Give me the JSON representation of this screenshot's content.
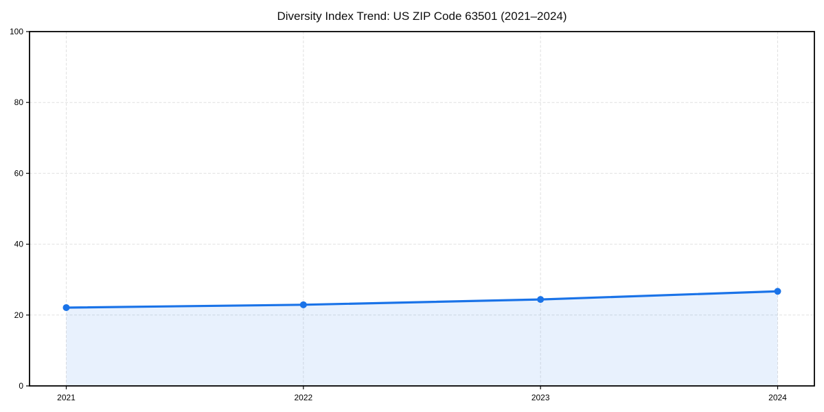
{
  "chart_data": {
    "type": "area",
    "title": "Diversity Index Trend: US ZIP Code 63501 (2021–2024)",
    "categories": [
      "2021",
      "2022",
      "2023",
      "2024"
    ],
    "series": [
      {
        "name": "Diversity Index",
        "values": [
          22.1,
          22.9,
          24.4,
          26.7
        ]
      }
    ],
    "xlabel": "",
    "ylabel": "",
    "ylim": [
      0,
      100
    ],
    "yticks": [
      0,
      20,
      40,
      60,
      80,
      100
    ],
    "grid": "dashed-both-axes",
    "legend": "none",
    "colors": {
      "line": "#1a73e8",
      "marker": "#1a73e8",
      "area_fill": "rgba(26,115,232,0.10)",
      "grid": "#e0e0e0",
      "spine": "#000000",
      "tick": "#000000",
      "text": "#0d0d0d"
    }
  }
}
